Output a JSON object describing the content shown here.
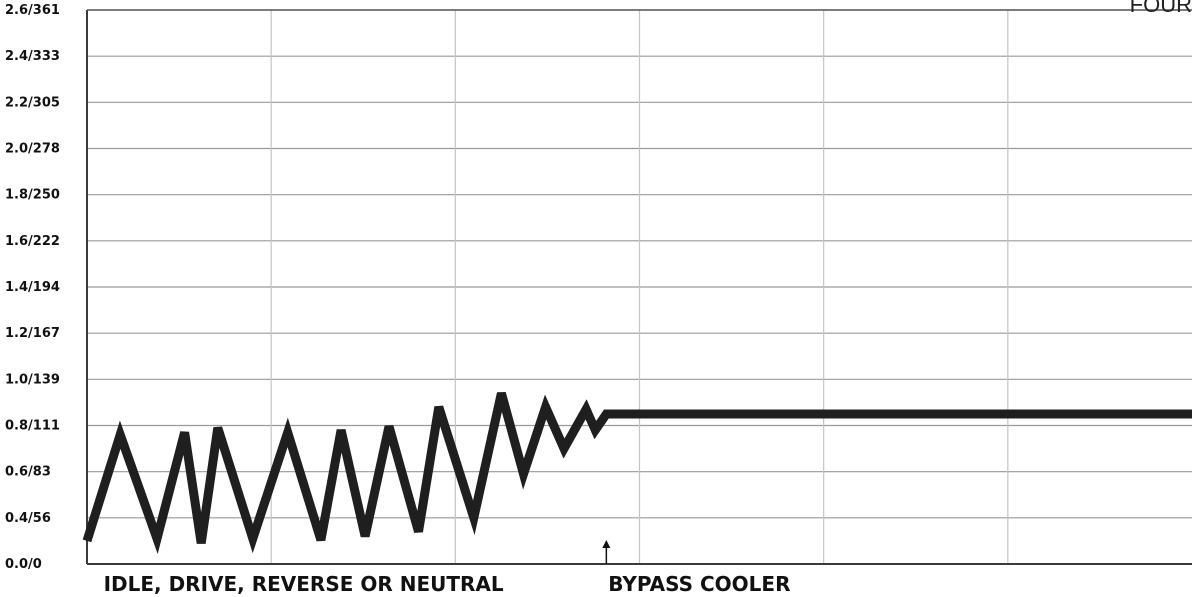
{
  "chart_data": {
    "type": "line",
    "title": "",
    "xlabel": "",
    "ylabel": "",
    "corner_text": "FOUR",
    "y_tick_labels": [
      "0.0/0",
      "0.4/56",
      "0.6/83",
      "0.8/111",
      "1.0/139",
      "1.2/167",
      "1.4/194",
      "1.6/222",
      "1.8/250",
      "2.0/278",
      "2.2/305",
      "2.4/333",
      "2.6/361"
    ],
    "ylim": [
      0,
      12
    ],
    "xlim": [
      0,
      6
    ],
    "grid": true,
    "series": [
      {
        "color": "#1f1f1f",
        "points": [
          [
            0.0,
            0.5
          ],
          [
            0.18,
            2.8
          ],
          [
            0.38,
            0.55
          ],
          [
            0.53,
            2.85
          ],
          [
            0.62,
            0.45
          ],
          [
            0.71,
            2.95
          ],
          [
            0.9,
            0.55
          ],
          [
            1.09,
            2.85
          ],
          [
            1.27,
            0.52
          ],
          [
            1.38,
            2.9
          ],
          [
            1.51,
            0.6
          ],
          [
            1.64,
            2.98
          ],
          [
            1.8,
            0.7
          ],
          [
            1.91,
            3.4
          ],
          [
            2.1,
            1.0
          ],
          [
            2.25,
            3.7
          ],
          [
            2.37,
            1.95
          ],
          [
            2.49,
            3.4
          ],
          [
            2.59,
            2.5
          ],
          [
            2.71,
            3.35
          ],
          [
            2.76,
            2.9
          ],
          [
            2.82,
            3.25
          ],
          [
            6.0,
            3.25
          ]
        ]
      }
    ],
    "annotations": [
      {
        "text": "IDLE, DRIVE, REVERSE OR NEUTRAL",
        "x": 0.09
      },
      {
        "text": "BYPASS COOLER",
        "x": 2.83,
        "arrow_x": 2.82
      }
    ]
  }
}
